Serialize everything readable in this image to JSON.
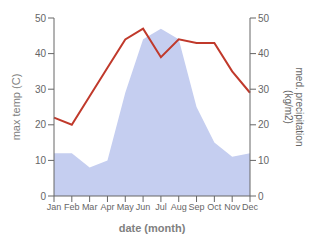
{
  "chart_data": {
    "type": "line",
    "x_label": "date (month)",
    "y_label": "max temp (C)",
    "y2_label": "med. precipitation\n(kg/m2)",
    "categories": [
      "Jan",
      "Feb",
      "Mar",
      "Apr",
      "May",
      "Jun",
      "Jul",
      "Aug",
      "Sep",
      "Oct",
      "Nov",
      "Dec"
    ],
    "series": [
      {
        "type": "area",
        "color": "#c5cef0",
        "values": [
          12.0,
          12.0,
          8.0,
          10.0,
          29.0,
          44.0,
          47.0,
          44.0,
          25.0,
          15.0,
          11.0,
          12.0
        ]
      },
      {
        "type": "line",
        "color": "#c0392b",
        "values": [
          22.0,
          20.0,
          28.0,
          36.0,
          44.0,
          47.0,
          39.0,
          44.0,
          43.0,
          43.0,
          35.0,
          29.0
        ]
      }
    ],
    "ylim": [
      0,
      50
    ],
    "yticks": [
      0,
      10,
      20,
      30,
      40,
      50
    ],
    "y2lim": [
      0,
      50
    ],
    "y2ticks": [
      0,
      10,
      20,
      30,
      40,
      50
    ],
    "grid": false
  }
}
